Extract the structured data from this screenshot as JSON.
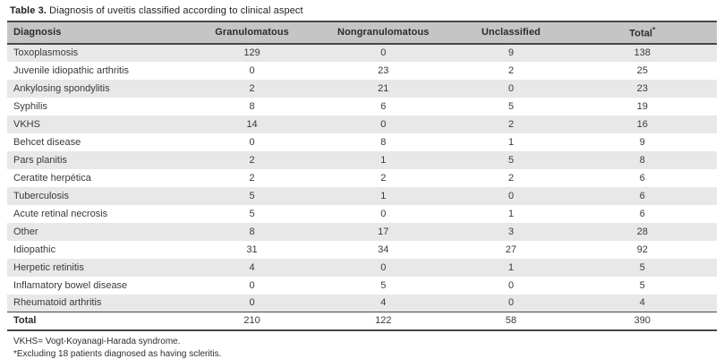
{
  "title": {
    "label": "Table 3.",
    "text": " Diagnosis of uveitis classified according to clinical aspect"
  },
  "table": {
    "columns": [
      "Diagnosis",
      "Granulomatous",
      "Nongranulomatous",
      "Unclassified"
    ],
    "total_header": {
      "label": "Total",
      "sup": "*"
    },
    "rows": [
      {
        "diagnosis": "Toxoplasmosis",
        "values": [
          129,
          0,
          9,
          138
        ]
      },
      {
        "diagnosis": "Juvenile idiopathic arthritis",
        "values": [
          0,
          23,
          2,
          25
        ]
      },
      {
        "diagnosis": "Ankylosing spondylitis",
        "values": [
          2,
          21,
          0,
          23
        ]
      },
      {
        "diagnosis": "Syphilis",
        "values": [
          8,
          6,
          5,
          19
        ]
      },
      {
        "diagnosis": "VKHS",
        "values": [
          14,
          0,
          2,
          16
        ]
      },
      {
        "diagnosis": "Behcet disease",
        "values": [
          0,
          8,
          1,
          9
        ]
      },
      {
        "diagnosis": "Pars planitis",
        "values": [
          2,
          1,
          5,
          8
        ]
      },
      {
        "diagnosis": "Ceratite herpética",
        "values": [
          2,
          2,
          2,
          6
        ]
      },
      {
        "diagnosis": "Tuberculosis",
        "values": [
          5,
          1,
          0,
          6
        ]
      },
      {
        "diagnosis": "Acute retinal necrosis",
        "values": [
          5,
          0,
          1,
          6
        ]
      },
      {
        "diagnosis": "Other",
        "values": [
          8,
          17,
          3,
          28
        ]
      },
      {
        "diagnosis": "Idiopathic",
        "values": [
          31,
          34,
          27,
          92
        ]
      },
      {
        "diagnosis": "Herpetic retinitis",
        "values": [
          4,
          0,
          1,
          5
        ]
      },
      {
        "diagnosis": "Inflamatory bowel disease",
        "values": [
          0,
          5,
          0,
          5
        ]
      },
      {
        "diagnosis": "Rheumatoid arthritis",
        "values": [
          0,
          4,
          0,
          4
        ]
      }
    ],
    "total_row": {
      "diagnosis": "Total",
      "values": [
        210,
        122,
        58,
        390
      ]
    }
  },
  "footnotes": [
    "VKHS= Vogt-Koyanagi-Harada syndrome.",
    "*Excluding 18 patients diagnosed as having scleritis."
  ],
  "colors": {
    "header_bg": "#c5c5c5",
    "row_shade": "#e8e8e8",
    "border": "#474747",
    "text": "#3a3a3a"
  }
}
